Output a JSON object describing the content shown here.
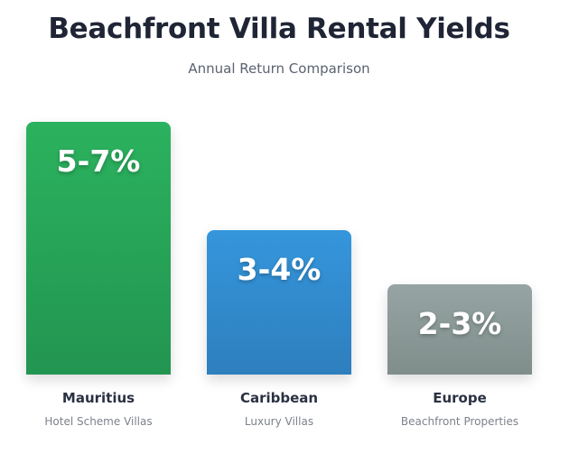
{
  "chart_data": {
    "type": "bar",
    "title": "Beachfront Villa Rental Yields",
    "subtitle": "Annual Return Comparison",
    "categories": [
      "Mauritius",
      "Caribbean",
      "Europe"
    ],
    "category_descriptions": [
      "Hotel Scheme Villas",
      "Luxury Villas",
      "Beachfront Properties"
    ],
    "value_labels": [
      "5-7%",
      "3-4%",
      "2-3%"
    ],
    "values": [
      7,
      4,
      2.5
    ],
    "bar_colors": [
      [
        "#2bb25e",
        "#229551"
      ],
      [
        "#3596dc",
        "#2e7fbd"
      ],
      [
        "#96a5a3",
        "#7f8d8b"
      ]
    ],
    "grid": false
  }
}
